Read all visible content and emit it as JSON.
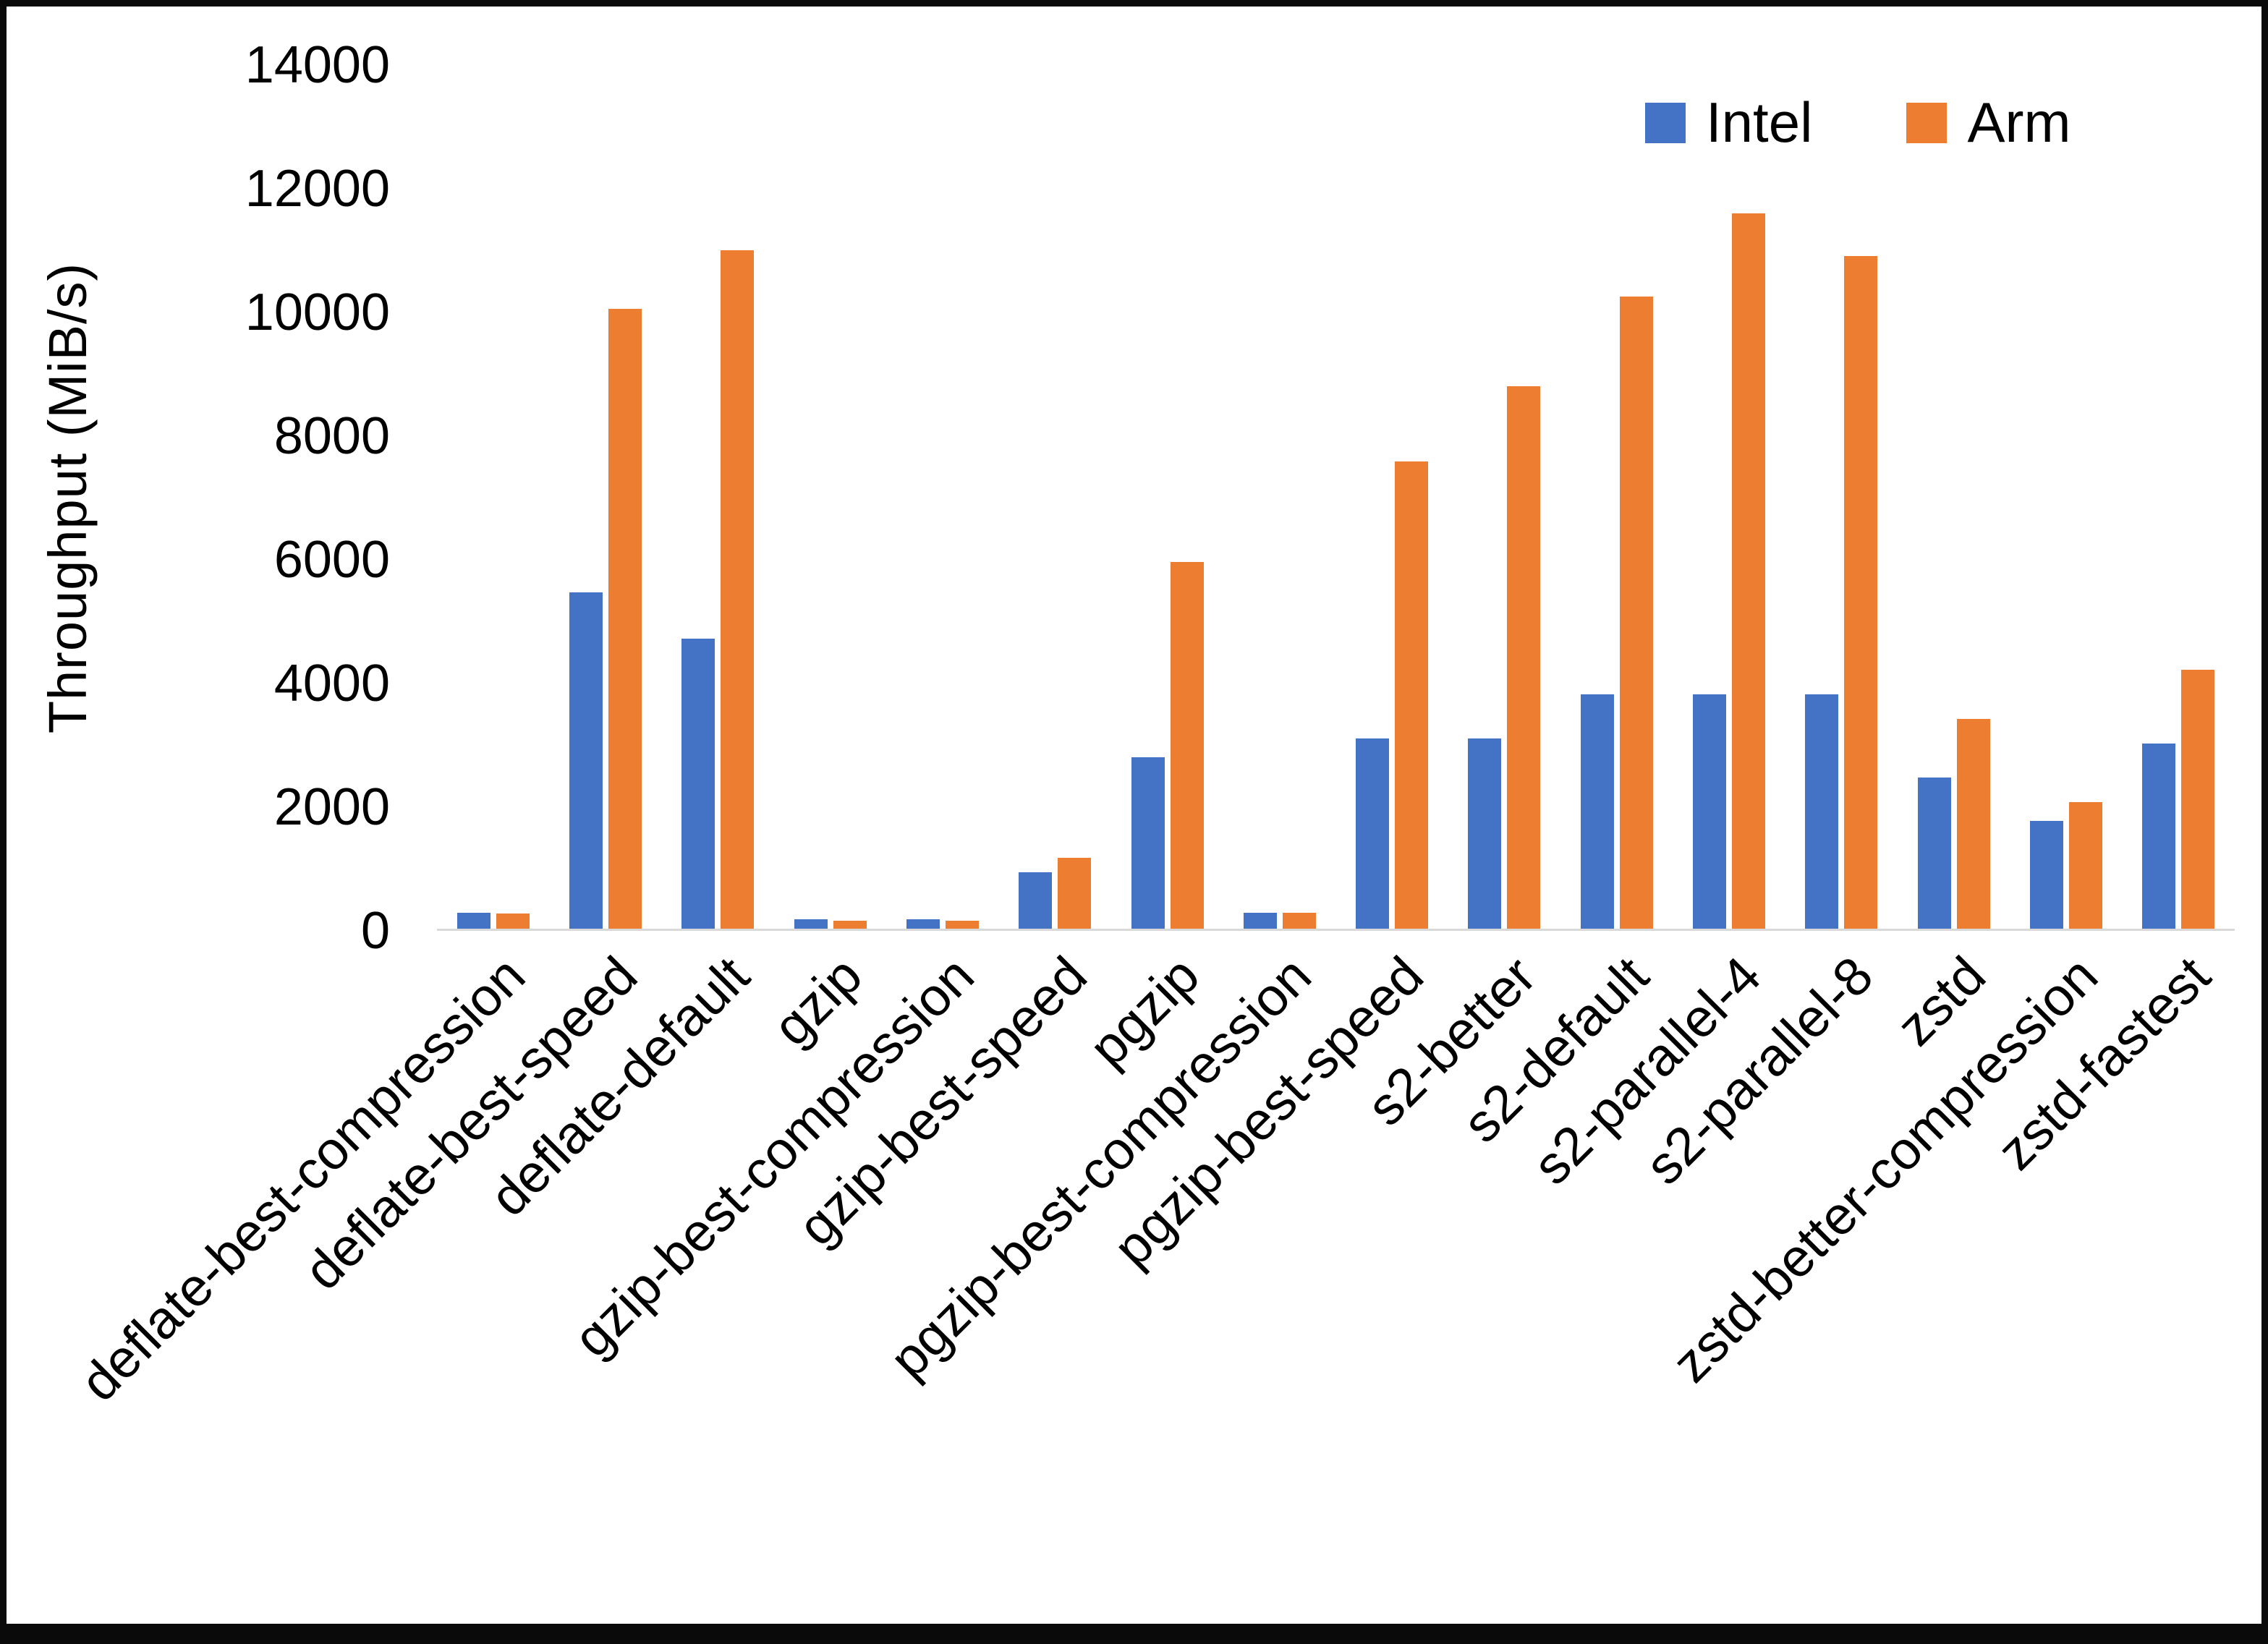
{
  "chart_data": {
    "type": "bar",
    "title": "",
    "xlabel": "",
    "ylabel": "Throughput (MiB/s)",
    "ylim": [
      0,
      14000
    ],
    "ytick_step": 2000,
    "grid": false,
    "legend_position": "top-right",
    "categories": [
      "deflate-best-compression",
      "deflate-best-speed",
      "deflate-default",
      "gzip",
      "gzip-best-compression",
      "gzip-best-speed",
      "pgzip",
      "pgzip-best-compression",
      "pgzip-best-speed",
      "s2-better",
      "s2-default",
      "s2-parallel-4",
      "s2-parallel-8",
      "zstd",
      "zstd-better-compression",
      "zstd-fastest"
    ],
    "series": [
      {
        "name": "Intel",
        "color": "#4472C4",
        "values": [
          260,
          5450,
          4700,
          150,
          150,
          920,
          2780,
          260,
          3080,
          3080,
          3800,
          3800,
          3800,
          2450,
          1750,
          3000
        ]
      },
      {
        "name": "Arm",
        "color": "#ED7D31",
        "values": [
          250,
          10050,
          11000,
          130,
          130,
          1150,
          5950,
          260,
          7580,
          8800,
          10250,
          11600,
          10900,
          3400,
          2050,
          4200
        ]
      }
    ]
  }
}
